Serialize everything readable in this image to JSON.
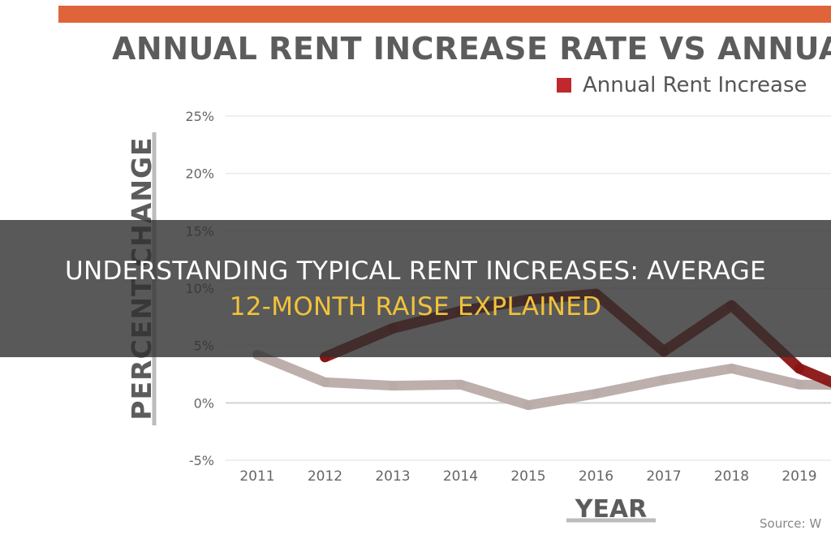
{
  "colors": {
    "accent_bar": "#e0643a",
    "title_text": "#5c5c5c",
    "rent_series": "#8a1313",
    "rent_legend": "#c0282d",
    "second_series": "#b8aba8",
    "axis_frame": "#bcbcbc",
    "tick_text": "#666666",
    "banner_title": "#ffffff",
    "banner_highlight": "#f2c23a"
  },
  "banner": {
    "line1": "UNDERSTANDING TYPICAL RENT INCREASES: AVERAGE",
    "line2": "12-MONTH RAISE EXPLAINED"
  },
  "chart_data": {
    "type": "line",
    "title": "ANNUAL RENT INCREASE RATE VS ANNUAL C",
    "xlabel": "YEAR",
    "ylabel": "PERCENT CHANGE",
    "source": "Source: W",
    "x": [
      "2011",
      "2012",
      "2013",
      "2014",
      "2015",
      "2016",
      "2017",
      "2018",
      "2019"
    ],
    "ylim": [
      -5,
      25
    ],
    "yticks": [
      "25%",
      "20%",
      "15%",
      "10%",
      "5%",
      "0%",
      "-5%"
    ],
    "grid": true,
    "legend": {
      "position": "top-right",
      "entries": [
        "Annual Rent Increase"
      ]
    },
    "series": [
      {
        "name": "Annual Rent Increase",
        "values": [
          null,
          4,
          6.5,
          8,
          9,
          9.5,
          4.5,
          8.5,
          3
        ],
        "extends_to": {
          "x_index": 9.6,
          "value": -1
        }
      },
      {
        "values": [
          4.2,
          1.8,
          1.5,
          1.6,
          -0.2,
          0.8,
          2,
          3,
          1.6
        ],
        "extends_to": {
          "x_index": 9.6,
          "value": 1.5
        }
      }
    ]
  }
}
